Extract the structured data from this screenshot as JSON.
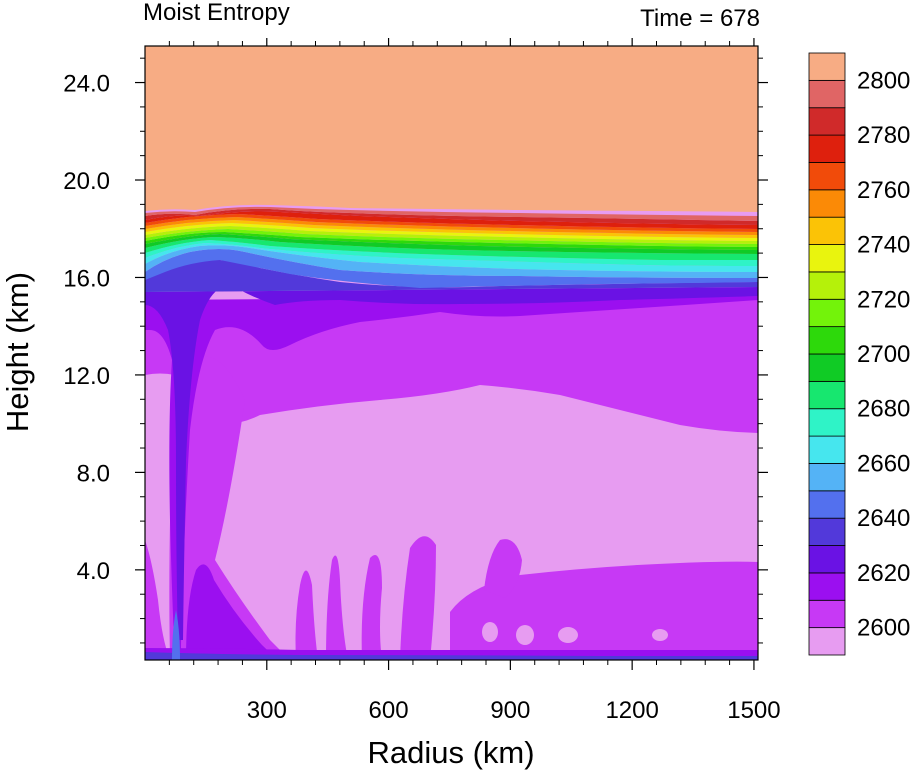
{
  "chart_data": {
    "type": "heatmap",
    "title": "Moist Entropy",
    "subtitle": "Time = 678",
    "xlabel": "Radius (km)",
    "ylabel": "Height (km)",
    "xlim": [
      0,
      1510
    ],
    "ylim": [
      0.3,
      25.5
    ],
    "xticks": [
      300,
      600,
      900,
      1200,
      1500
    ],
    "xtick_labels": [
      "300",
      "600",
      "900",
      "1200",
      "1500"
    ],
    "yticks": [
      4.0,
      8.0,
      12.0,
      16.0,
      20.0,
      24.0
    ],
    "ytick_labels": [
      "4.0",
      "8.0",
      "12.0",
      "16.0",
      "20.0",
      "24.0"
    ],
    "colorbar": {
      "labels": [
        "2600",
        "2620",
        "2640",
        "2660",
        "2680",
        "2700",
        "2720",
        "2740",
        "2760",
        "2780",
        "2800"
      ],
      "colors": [
        "#E79CF1",
        "#C739F5",
        "#9B0FF0",
        "#6A12E4",
        "#5239DA",
        "#5370EE",
        "#54B3F6",
        "#46E6EE",
        "#2FF3C7",
        "#17E76F",
        "#10CB25",
        "#2DD90B",
        "#73F30A",
        "#B5F10A",
        "#E9F40E",
        "#FBC306",
        "#FB8A06",
        "#F14B0A",
        "#DE200D",
        "#D02A2A",
        "#E06565",
        "#F7AC84"
      ]
    },
    "description_levels": {
      "upper_stratosphere_value": "above 2800",
      "tropopause_height_km": 18.5,
      "mid_troposphere_value": "2600",
      "eye_radius_km": 100
    }
  }
}
